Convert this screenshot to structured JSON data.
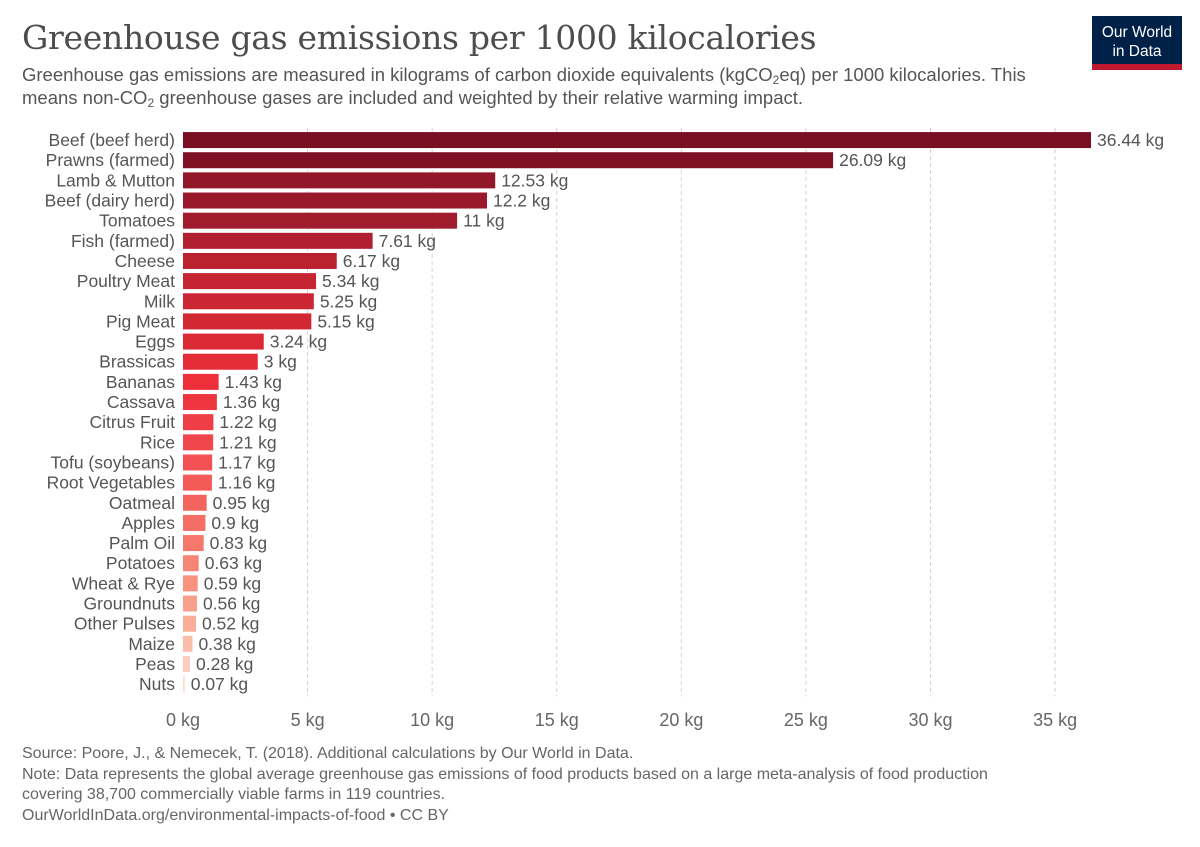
{
  "title": "Greenhouse gas emissions per 1000 kilocalories",
  "subtitle": {
    "part1": "Greenhouse gas emissions are measured in kilograms of carbon dioxide equivalents (kgCO",
    "sub1": "2",
    "part2": "eq) per 1000 kilocalories. This means non-CO",
    "sub2": "2",
    "part3": " greenhouse gases are included and weighted by their relative warming impact."
  },
  "logo": {
    "line1": "Our World",
    "line2": "in Data"
  },
  "chart_data": {
    "type": "bar",
    "orientation": "horizontal",
    "unit_suffix": " kg",
    "xlim": [
      0,
      36.44
    ],
    "xticks": [
      0,
      5,
      10,
      15,
      20,
      25,
      30,
      35
    ],
    "xtick_labels": [
      "0 kg",
      "5 kg",
      "10 kg",
      "15 kg",
      "20 kg",
      "25 kg",
      "30 kg",
      "35 kg"
    ],
    "grid": "vertical-dashed",
    "bars": [
      {
        "label": "Beef (beef herd)",
        "value": 36.44,
        "value_label": "36.44 kg",
        "color": "#7a0e22"
      },
      {
        "label": "Prawns (farmed)",
        "value": 26.09,
        "value_label": "26.09 kg",
        "color": "#801024"
      },
      {
        "label": "Lamb & Mutton",
        "value": 12.53,
        "value_label": "12.53 kg",
        "color": "#921728"
      },
      {
        "label": "Beef (dairy herd)",
        "value": 12.2,
        "value_label": "12.2 kg",
        "color": "#99192a"
      },
      {
        "label": "Tomatoes",
        "value": 11,
        "value_label": "11 kg",
        "color": "#a11c2c"
      },
      {
        "label": "Fish (farmed)",
        "value": 7.61,
        "value_label": "7.61 kg",
        "color": "#b0202e"
      },
      {
        "label": "Cheese",
        "value": 6.17,
        "value_label": "6.17 kg",
        "color": "#bb2230"
      },
      {
        "label": "Poultry Meat",
        "value": 5.34,
        "value_label": "5.34 kg",
        "color": "#c52432"
      },
      {
        "label": "Milk",
        "value": 5.25,
        "value_label": "5.25 kg",
        "color": "#cc2533"
      },
      {
        "label": "Pig Meat",
        "value": 5.15,
        "value_label": "5.15 kg",
        "color": "#d32734"
      },
      {
        "label": "Eggs",
        "value": 3.24,
        "value_label": "3.24 kg",
        "color": "#dc2a35"
      },
      {
        "label": "Brassicas",
        "value": 3,
        "value_label": "3 kg",
        "color": "#e52d37"
      },
      {
        "label": "Bananas",
        "value": 1.43,
        "value_label": "1.43 kg",
        "color": "#ee2f3a"
      },
      {
        "label": "Cassava",
        "value": 1.36,
        "value_label": "1.36 kg",
        "color": "#ef3640"
      },
      {
        "label": "Citrus Fruit",
        "value": 1.22,
        "value_label": "1.22 kg",
        "color": "#f03e46"
      },
      {
        "label": "Rice",
        "value": 1.21,
        "value_label": "1.21 kg",
        "color": "#f1474c"
      },
      {
        "label": "Tofu (soybeans)",
        "value": 1.17,
        "value_label": "1.17 kg",
        "color": "#f25052"
      },
      {
        "label": "Root Vegetables",
        "value": 1.16,
        "value_label": "1.16 kg",
        "color": "#f35a58"
      },
      {
        "label": "Oatmeal",
        "value": 0.95,
        "value_label": "0.95 kg",
        "color": "#f4645e"
      },
      {
        "label": "Apples",
        "value": 0.9,
        "value_label": "0.9 kg",
        "color": "#f56e65"
      },
      {
        "label": "Palm Oil",
        "value": 0.83,
        "value_label": "0.83 kg",
        "color": "#f6786c"
      },
      {
        "label": "Potatoes",
        "value": 0.63,
        "value_label": "0.63 kg",
        "color": "#f78575"
      },
      {
        "label": "Wheat & Rye",
        "value": 0.59,
        "value_label": "0.59 kg",
        "color": "#f8927f"
      },
      {
        "label": "Groundnuts",
        "value": 0.56,
        "value_label": "0.56 kg",
        "color": "#f9a08b"
      },
      {
        "label": "Other Pulses",
        "value": 0.52,
        "value_label": "0.52 kg",
        "color": "#faae98"
      },
      {
        "label": "Maize",
        "value": 0.38,
        "value_label": "0.38 kg",
        "color": "#fbbdaa"
      },
      {
        "label": "Peas",
        "value": 0.28,
        "value_label": "0.28 kg",
        "color": "#fccdbf"
      },
      {
        "label": "Nuts",
        "value": 0.07,
        "value_label": "0.07 kg",
        "color": "#fddcd2"
      }
    ]
  },
  "footer": {
    "source": "Source: Poore, J., & Nemecek, T. (2018). Additional calculations by Our World in Data.",
    "note_line1": "Note: Data represents the global average greenhouse gas emissions of food products based on a large meta-analysis of food production",
    "note_line2": "covering 38,700 commercially viable farms in 119 countries.",
    "url": "OurWorldInData.org/environmental-impacts-of-food • CC BY"
  }
}
